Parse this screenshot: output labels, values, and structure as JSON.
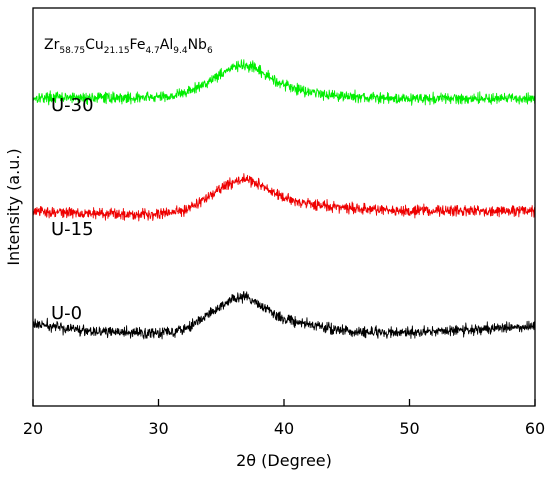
{
  "chart_data": {
    "type": "line",
    "composition": [
      {
        "el": "Zr",
        "sub": "58.75"
      },
      {
        "el": "Cu",
        "sub": "21.15"
      },
      {
        "el": "Fe",
        "sub": "4.7"
      },
      {
        "el": "Al",
        "sub": "9.4"
      },
      {
        "el": "Nb",
        "sub": "6"
      }
    ],
    "xlabel": "2θ (Degree)",
    "ylabel": "Intensity (a.u.)",
    "xlim": [
      20,
      60
    ],
    "ylim": [
      0,
      100
    ],
    "x_ticks": [
      "20",
      "30",
      "40",
      "50",
      "60"
    ],
    "y_ticks_shown": false,
    "grid": false,
    "series": [
      {
        "name": "U-30",
        "color": "#00ee00",
        "x": [
          20,
          22,
          24,
          26,
          28,
          30,
          31,
          32,
          33,
          34,
          35,
          35.5,
          36,
          36.5,
          37,
          37.5,
          38,
          38.5,
          39,
          40,
          41,
          42,
          43,
          44,
          46,
          48,
          50,
          52,
          54,
          56,
          58,
          60
        ],
        "y": [
          77.5,
          77.5,
          77.4,
          77.5,
          77.4,
          77.6,
          77.9,
          78.6,
          79.8,
          81.6,
          83.6,
          84.4,
          85.1,
          85.5,
          85.4,
          85.0,
          84.2,
          83.2,
          82.3,
          80.8,
          79.7,
          79.0,
          78.5,
          78.1,
          77.6,
          77.3,
          77.3,
          77.2,
          77.3,
          77.3,
          77.2,
          77.3
        ]
      },
      {
        "name": "U-15",
        "color": "#ee0000",
        "x": [
          20,
          22,
          24,
          26,
          28,
          30,
          31,
          32,
          33,
          34,
          35,
          35.5,
          36,
          36.5,
          37,
          37.5,
          38,
          38.5,
          39,
          40,
          41,
          42,
          43,
          44,
          46,
          48,
          50,
          52,
          54,
          56,
          58,
          60
        ],
        "y": [
          48.8,
          48.7,
          48.5,
          48.3,
          48.2,
          48.3,
          48.6,
          49.3,
          50.7,
          52.6,
          54.6,
          55.6,
          56.3,
          56.8,
          56.9,
          56.5,
          55.7,
          54.7,
          53.8,
          52.2,
          51.4,
          50.9,
          50.4,
          50.0,
          49.5,
          49.2,
          49.1,
          49.1,
          49.0,
          49.0,
          49.0,
          49.0
        ]
      },
      {
        "name": "U-0",
        "color": "#000000",
        "x": [
          20,
          22,
          24,
          26,
          28,
          30,
          31,
          32,
          33,
          34,
          35,
          35.5,
          36,
          36.5,
          37,
          37.5,
          38,
          38.5,
          39,
          40,
          41,
          42,
          43,
          44,
          46,
          48,
          50,
          52,
          54,
          56,
          58,
          60
        ],
        "y": [
          20.6,
          19.8,
          19.1,
          18.6,
          18.3,
          18.4,
          18.8,
          19.5,
          20.9,
          23.0,
          25.1,
          26.2,
          26.9,
          27.3,
          27.2,
          26.6,
          25.7,
          24.5,
          23.4,
          21.9,
          21.2,
          20.5,
          19.8,
          19.2,
          18.6,
          18.4,
          18.5,
          18.7,
          19.0,
          19.4,
          19.8,
          20.2
        ]
      }
    ],
    "annotations": [
      "U-30",
      "U-15",
      "U-0"
    ]
  }
}
